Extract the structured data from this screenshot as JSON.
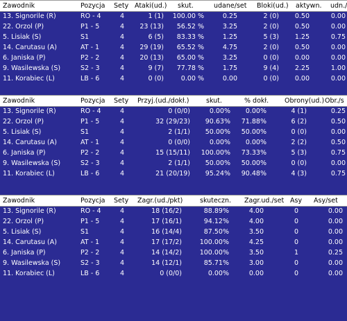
{
  "table_attack": {
    "headers": [
      "Zawodnik",
      "Pozycja",
      "Sety",
      "Ataki(ud.)",
      "skut.",
      "udane/set",
      "Bloki(ud.)",
      "aktywn.",
      "udn./s"
    ],
    "rows": [
      [
        "13. Signorile (R)",
        "RO - 4",
        "4",
        "1 (1)",
        "100.00 %",
        "0.25",
        "2 (0)",
        "0.50",
        "0.00"
      ],
      [
        "22. Orzol (P)",
        "P1 - 5",
        "4",
        "23 (13)",
        "56.52 %",
        "3.25",
        "2 (0)",
        "0.50",
        "0.00"
      ],
      [
        "5. Lisiak (S)",
        "S1",
        "4",
        "6 (5)",
        "83.33 %",
        "1.25",
        "5 (3)",
        "1.25",
        "0.75"
      ],
      [
        "14. Carutasu (A)",
        "AT - 1",
        "4",
        "29 (19)",
        "65.52 %",
        "4.75",
        "2 (0)",
        "0.50",
        "0.00"
      ],
      [
        "6. Janiska (P)",
        "P2 - 2",
        "4",
        "20 (13)",
        "65.00 %",
        "3.25",
        "0 (0)",
        "0.00",
        "0.00"
      ],
      [
        "9. Wasilewska (S)",
        "S2 - 3",
        "4",
        "9 (7)",
        "77.78 %",
        "1.75",
        "9 (4)",
        "2.25",
        "1.00"
      ],
      [
        "11. Korabiec (L)",
        "LB - 6",
        "4",
        "0 (0)",
        "0.00 %",
        "0.00",
        "0 (0)",
        "0.00",
        "0.00"
      ]
    ]
  },
  "table_reception": {
    "headers": [
      "Zawodnik",
      "Pozycja",
      "Sety",
      "Przyj.(ud./dokł.)",
      "skut.",
      "% dokł.",
      "Obrony(ud.)",
      "Obr./s"
    ],
    "rows": [
      [
        "13. Signorile (R)",
        "RO - 4",
        "4",
        "0 (0/0)",
        "0.00%",
        "0.00%",
        "4 (1)",
        "0.25"
      ],
      [
        "22. Orzol (P)",
        "P1 - 5",
        "4",
        "32 (29/23)",
        "90.63%",
        "71.88%",
        "6 (2)",
        "0.50"
      ],
      [
        "5. Lisiak (S)",
        "S1",
        "4",
        "2 (1/1)",
        "50.00%",
        "50.00%",
        "0 (0)",
        "0.00"
      ],
      [
        "14. Carutasu (A)",
        "AT - 1",
        "4",
        "0 (0/0)",
        "0.00%",
        "0.00%",
        "2 (2)",
        "0.50"
      ],
      [
        "6. Janiska (P)",
        "P2 - 2",
        "4",
        "15 (15/11)",
        "100.00%",
        "73.33%",
        "5 (3)",
        "0.75"
      ],
      [
        "9. Wasilewska (S)",
        "S2 - 3",
        "4",
        "2 (1/1)",
        "50.00%",
        "50.00%",
        "0 (0)",
        "0.00"
      ],
      [
        "11. Korabiec (L)",
        "LB - 6",
        "4",
        "21 (20/19)",
        "95.24%",
        "90.48%",
        "4 (3)",
        "0.75"
      ]
    ]
  },
  "table_serve": {
    "headers": [
      "Zawodnik",
      "Pozycja",
      "Sety",
      "Zagr.(ud./pkt)",
      "skuteczn.",
      "Zagr.ud./set",
      "Asy",
      "Asy/set"
    ],
    "rows": [
      [
        "13. Signorile (R)",
        "RO - 4",
        "4",
        "18 (16/2)",
        "88.89%",
        "4.00",
        "0",
        "0.00"
      ],
      [
        "22. Orzol (P)",
        "P1 - 5",
        "4",
        "17 (16/1)",
        "94.12%",
        "4.00",
        "0",
        "0.00"
      ],
      [
        "5. Lisiak (S)",
        "S1",
        "4",
        "16 (14/4)",
        "87.50%",
        "3.50",
        "0",
        "0.00"
      ],
      [
        "14. Carutasu (A)",
        "AT - 1",
        "4",
        "17 (17/2)",
        "100.00%",
        "4.25",
        "0",
        "0.00"
      ],
      [
        "6. Janiska (P)",
        "P2 - 2",
        "4",
        "14 (14/2)",
        "100.00%",
        "3.50",
        "1",
        "0.25"
      ],
      [
        "9. Wasilewska (S)",
        "S2 - 3",
        "4",
        "14 (12/1)",
        "85.71%",
        "3.00",
        "0",
        "0.00"
      ],
      [
        "11. Korabiec (L)",
        "LB - 6",
        "4",
        "0 (0/0)",
        "0.00%",
        "0.00",
        "0",
        "0.00"
      ]
    ]
  }
}
